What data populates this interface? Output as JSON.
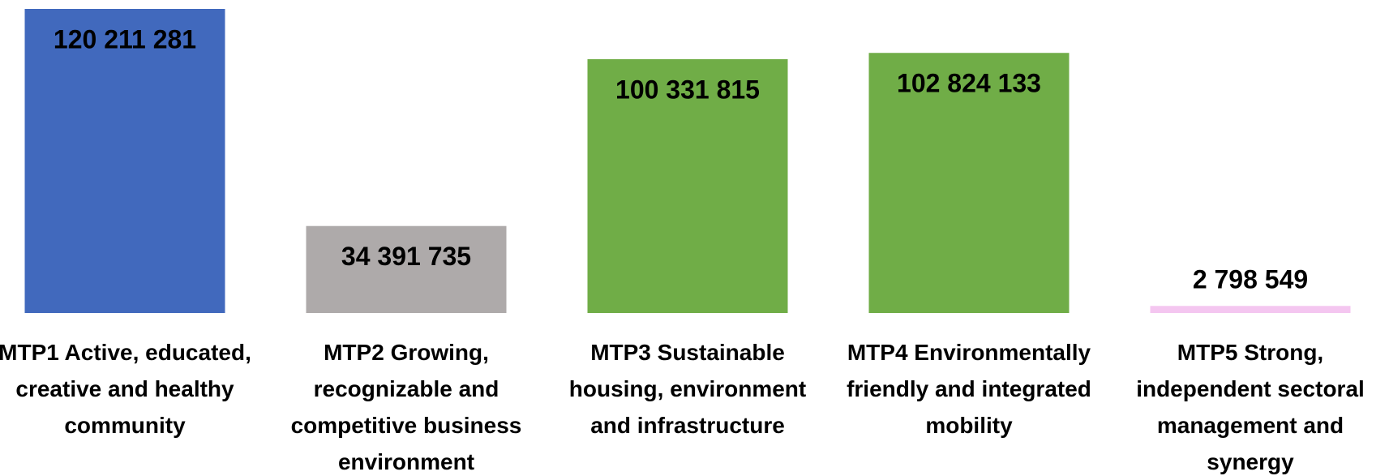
{
  "chart_data": {
    "type": "bar",
    "categories": [
      "MTP1 Active, educated, creative and healthy community",
      "MTP2 Growing, recognizable and competitive business environment",
      "MTP3 Sustainable housing, environment and infrastructure",
      "MTP4 Environmentally friendly and integrated mobility",
      "MTP5 Strong, independent sectoral management and synergy"
    ],
    "values": [
      120211281,
      34391735,
      100331815,
      102824133,
      2798549
    ],
    "value_labels": [
      "120 211 281",
      "34 391 735",
      "100 331 815",
      "102 824 133",
      "2 798 549"
    ],
    "colors": [
      "#4169bd",
      "#aeaaaa",
      "#70ad47",
      "#70ad47",
      "#f4c6f0"
    ]
  }
}
